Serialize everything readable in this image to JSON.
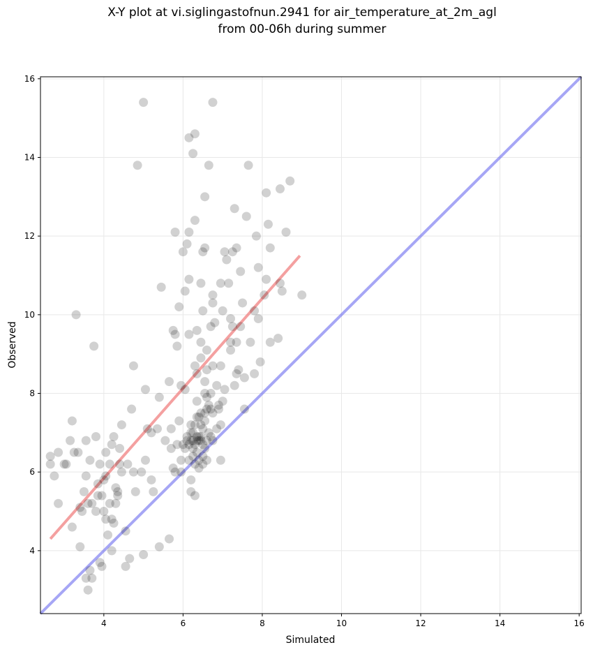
{
  "chart_data": {
    "type": "scatter",
    "title_line1": "X-Y plot at vi.siglingastofnun.2941 for air_temperature_at_2m_agl",
    "title_line2": "from 00-06h during summer",
    "xlabel": "Simulated",
    "ylabel": "Observed",
    "xlim": [
      2.4,
      16.05
    ],
    "ylim": [
      2.4,
      16.05
    ],
    "xticks": [
      4,
      6,
      8,
      10,
      12,
      14,
      16
    ],
    "yticks": [
      4,
      6,
      8,
      10,
      12,
      14,
      16
    ],
    "grid": true,
    "colors": {
      "points": "#000000",
      "fit_line": "#f08080",
      "identity_line": "#6b6bef",
      "grid": "#e8e8e8"
    },
    "identity_line": {
      "x": [
        2.4,
        16.05
      ],
      "y": [
        2.4,
        16.05
      ]
    },
    "fit_line": {
      "x": [
        2.65,
        8.95
      ],
      "y": [
        4.3,
        11.5
      ]
    },
    "points": [
      [
        2.65,
        6.4
      ],
      [
        2.65,
        6.2
      ],
      [
        2.75,
        5.9
      ],
      [
        2.85,
        6.5
      ],
      [
        2.85,
        5.2
      ],
      [
        3.05,
        6.2
      ],
      [
        3.15,
        6.8
      ],
      [
        3.2,
        7.3
      ],
      [
        3.25,
        6.5
      ],
      [
        3.3,
        10.0
      ],
      [
        3.2,
        4.6
      ],
      [
        3.4,
        5.1
      ],
      [
        3.4,
        4.1
      ],
      [
        3.45,
        5.0
      ],
      [
        3.5,
        5.5
      ],
      [
        3.55,
        3.3
      ],
      [
        3.55,
        5.9
      ],
      [
        3.6,
        3.0
      ],
      [
        3.65,
        6.3
      ],
      [
        3.65,
        3.5
      ],
      [
        3.7,
        5.2
      ],
      [
        3.7,
        3.3
      ],
      [
        3.75,
        9.2
      ],
      [
        3.8,
        6.9
      ],
      [
        3.8,
        5.0
      ],
      [
        3.85,
        5.7
      ],
      [
        3.85,
        5.4
      ],
      [
        3.9,
        3.7
      ],
      [
        3.95,
        5.4
      ],
      [
        3.95,
        3.6
      ],
      [
        4.0,
        5.8
      ],
      [
        4.0,
        5.0
      ],
      [
        4.05,
        4.8
      ],
      [
        4.05,
        6.5
      ],
      [
        4.1,
        4.4
      ],
      [
        4.15,
        5.2
      ],
      [
        4.15,
        6.2
      ],
      [
        4.2,
        4.0
      ],
      [
        4.2,
        4.8
      ],
      [
        4.25,
        6.9
      ],
      [
        4.25,
        4.7
      ],
      [
        4.3,
        5.6
      ],
      [
        4.3,
        5.2
      ],
      [
        4.35,
        5.5
      ],
      [
        4.4,
        6.6
      ],
      [
        4.4,
        6.2
      ],
      [
        4.45,
        7.2
      ],
      [
        4.45,
        6.0
      ],
      [
        4.55,
        3.6
      ],
      [
        4.55,
        4.5
      ],
      [
        4.6,
        6.2
      ],
      [
        4.65,
        3.8
      ],
      [
        4.7,
        7.6
      ],
      [
        4.75,
        6.0
      ],
      [
        4.75,
        8.7
      ],
      [
        4.8,
        5.5
      ],
      [
        4.85,
        13.8
      ],
      [
        4.95,
        6.0
      ],
      [
        5.0,
        15.4
      ],
      [
        5.0,
        3.9
      ],
      [
        5.05,
        6.3
      ],
      [
        5.05,
        8.1
      ],
      [
        5.1,
        7.1
      ],
      [
        5.2,
        7.0
      ],
      [
        5.2,
        5.8
      ],
      [
        5.25,
        5.5
      ],
      [
        5.35,
        7.1
      ],
      [
        5.4,
        7.9
      ],
      [
        5.4,
        4.1
      ],
      [
        5.45,
        10.7
      ],
      [
        5.55,
        6.8
      ],
      [
        5.65,
        4.3
      ],
      [
        5.65,
        8.3
      ],
      [
        5.7,
        6.6
      ],
      [
        5.75,
        6.1
      ],
      [
        5.75,
        9.6
      ],
      [
        5.8,
        9.5
      ],
      [
        5.8,
        12.1
      ],
      [
        5.85,
        9.2
      ],
      [
        5.85,
        6.7
      ],
      [
        5.9,
        7.3
      ],
      [
        5.9,
        10.2
      ],
      [
        5.95,
        6.0
      ],
      [
        5.95,
        8.2
      ],
      [
        6.0,
        6.7
      ],
      [
        6.0,
        11.6
      ],
      [
        6.05,
        10.6
      ],
      [
        6.05,
        8.1
      ],
      [
        6.1,
        6.9
      ],
      [
        6.1,
        11.8
      ],
      [
        6.15,
        12.1
      ],
      [
        6.15,
        10.9
      ],
      [
        6.15,
        9.5
      ],
      [
        6.15,
        14.5
      ],
      [
        6.2,
        7.2
      ],
      [
        6.2,
        5.8
      ],
      [
        6.2,
        5.5
      ],
      [
        6.25,
        14.1
      ],
      [
        6.25,
        6.6
      ],
      [
        6.25,
        6.4
      ],
      [
        6.3,
        14.6
      ],
      [
        6.3,
        12.4
      ],
      [
        6.3,
        8.7
      ],
      [
        6.3,
        6.2
      ],
      [
        6.35,
        7.8
      ],
      [
        6.35,
        9.6
      ],
      [
        6.35,
        6.8
      ],
      [
        6.4,
        7.4
      ],
      [
        6.4,
        6.9
      ],
      [
        6.45,
        10.8
      ],
      [
        6.45,
        9.3
      ],
      [
        6.45,
        8.9
      ],
      [
        6.5,
        11.6
      ],
      [
        6.5,
        10.1
      ],
      [
        6.5,
        7.1
      ],
      [
        6.5,
        6.4
      ],
      [
        6.55,
        13.0
      ],
      [
        6.55,
        11.7
      ],
      [
        6.55,
        8.0
      ],
      [
        6.55,
        7.5
      ],
      [
        6.6,
        9.1
      ],
      [
        6.6,
        7.9
      ],
      [
        6.6,
        6.3
      ],
      [
        6.65,
        7.7
      ],
      [
        6.65,
        13.8
      ],
      [
        6.7,
        9.7
      ],
      [
        6.7,
        7.6
      ],
      [
        6.7,
        6.9
      ],
      [
        6.75,
        15.4
      ],
      [
        6.75,
        10.5
      ],
      [
        6.75,
        10.3
      ],
      [
        6.75,
        8.7
      ],
      [
        6.8,
        9.8
      ],
      [
        6.85,
        7.1
      ],
      [
        6.9,
        7.6
      ],
      [
        6.95,
        6.3
      ],
      [
        6.95,
        10.8
      ],
      [
        6.95,
        8.7
      ],
      [
        7.0,
        10.1
      ],
      [
        7.0,
        7.8
      ],
      [
        7.05,
        11.6
      ],
      [
        7.1,
        11.4
      ],
      [
        7.15,
        10.8
      ],
      [
        7.2,
        9.9
      ],
      [
        7.2,
        9.3
      ],
      [
        7.2,
        9.1
      ],
      [
        7.25,
        11.6
      ],
      [
        7.25,
        9.7
      ],
      [
        7.3,
        12.7
      ],
      [
        7.3,
        8.2
      ],
      [
        7.35,
        9.3
      ],
      [
        7.35,
        11.7
      ],
      [
        7.4,
        8.6
      ],
      [
        7.45,
        9.7
      ],
      [
        7.45,
        11.1
      ],
      [
        7.5,
        10.3
      ],
      [
        7.55,
        8.4
      ],
      [
        7.6,
        12.5
      ],
      [
        7.65,
        13.8
      ],
      [
        7.7,
        9.3
      ],
      [
        7.8,
        8.5
      ],
      [
        7.8,
        10.1
      ],
      [
        7.85,
        12.0
      ],
      [
        7.9,
        11.2
      ],
      [
        7.9,
        9.9
      ],
      [
        7.95,
        8.8
      ],
      [
        8.05,
        10.5
      ],
      [
        8.1,
        13.1
      ],
      [
        8.1,
        10.9
      ],
      [
        8.15,
        12.3
      ],
      [
        8.2,
        9.3
      ],
      [
        8.2,
        11.7
      ],
      [
        8.4,
        9.4
      ],
      [
        8.45,
        13.2
      ],
      [
        8.45,
        10.8
      ],
      [
        8.5,
        10.6
      ],
      [
        8.6,
        12.1
      ],
      [
        8.7,
        13.4
      ],
      [
        9.0,
        10.5
      ],
      [
        3.0,
        6.2
      ],
      [
        6.25,
        7.0
      ],
      [
        6.3,
        6.7
      ],
      [
        6.35,
        6.5
      ],
      [
        6.4,
        6.8
      ],
      [
        6.45,
        6.9
      ],
      [
        6.5,
        6.7
      ],
      [
        6.6,
        6.8
      ],
      [
        6.25,
        6.8
      ],
      [
        6.35,
        7.4
      ],
      [
        6.45,
        7.2
      ],
      [
        6.3,
        5.4
      ],
      [
        6.05,
        6.6
      ],
      [
        6.15,
        6.7
      ],
      [
        6.45,
        7.5
      ],
      [
        6.55,
        7.3
      ],
      [
        6.15,
        6.3
      ],
      [
        6.4,
        6.3
      ],
      [
        6.55,
        6.6
      ],
      [
        6.65,
        7.0
      ],
      [
        6.4,
        6.1
      ],
      [
        6.3,
        7.2
      ],
      [
        6.45,
        6.8
      ],
      [
        6.35,
        6.9
      ],
      [
        6.2,
        6.8
      ],
      [
        6.5,
        6.2
      ],
      [
        6.6,
        7.6
      ],
      [
        6.75,
        6.8
      ],
      [
        6.2,
        7.0
      ],
      [
        6.1,
        6.8
      ],
      [
        5.95,
        6.3
      ],
      [
        5.8,
        6.0
      ],
      [
        5.7,
        7.1
      ],
      [
        4.35,
        5.4
      ],
      [
        4.05,
        5.9
      ],
      [
        3.6,
        5.2
      ],
      [
        3.9,
        6.2
      ],
      [
        4.2,
        6.7
      ],
      [
        3.55,
        6.8
      ],
      [
        3.35,
        6.5
      ],
      [
        6.95,
        7.2
      ],
      [
        7.05,
        8.1
      ],
      [
        6.85,
        8.2
      ],
      [
        6.55,
        8.3
      ],
      [
        6.35,
        8.5
      ],
      [
        6.6,
        8.6
      ],
      [
        6.7,
        8.0
      ],
      [
        6.9,
        7.7
      ],
      [
        7.35,
        8.5
      ],
      [
        7.55,
        7.6
      ],
      [
        6.75,
        7.5
      ]
    ]
  }
}
